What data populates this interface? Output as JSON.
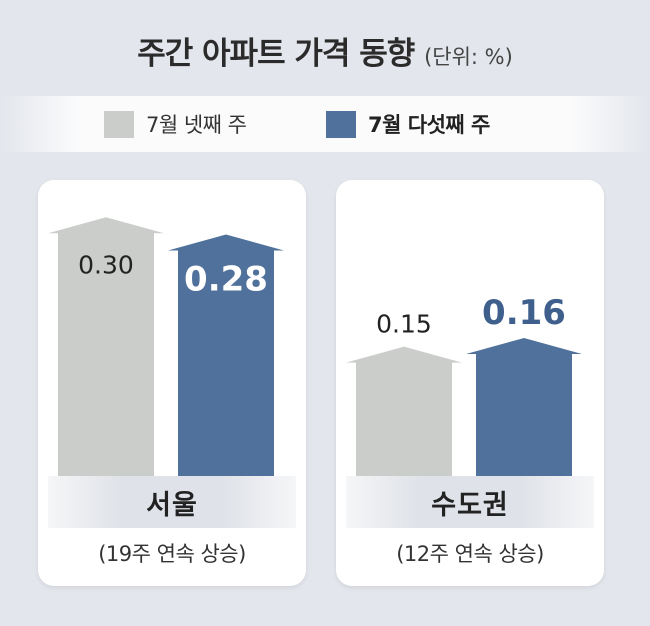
{
  "title": "주간 아파트 가격 동향",
  "unit": "(단위: %)",
  "legend": [
    {
      "label": "7월 넷째 주",
      "color": "#cbcdcb",
      "bold": false
    },
    {
      "label": "7월 다섯째 주",
      "color": "#50719b",
      "bold": true
    }
  ],
  "chart_data": [
    {
      "type": "bar",
      "title": "서울",
      "subtitle": "(19주 연속 상승)",
      "categories": [
        "7월 넷째 주",
        "7월 다섯째 주"
      ],
      "values": [
        0.3,
        0.28
      ],
      "labels": [
        "0.30",
        "0.28"
      ],
      "ylim": [
        0,
        0.32
      ]
    },
    {
      "type": "bar",
      "title": "수도권",
      "subtitle": "(12주 연속 상승)",
      "categories": [
        "7월 넷째 주",
        "7월 다섯째 주"
      ],
      "values": [
        0.15,
        0.16
      ],
      "labels": [
        "0.15",
        "0.16"
      ],
      "ylim": [
        0,
        0.32
      ]
    }
  ]
}
